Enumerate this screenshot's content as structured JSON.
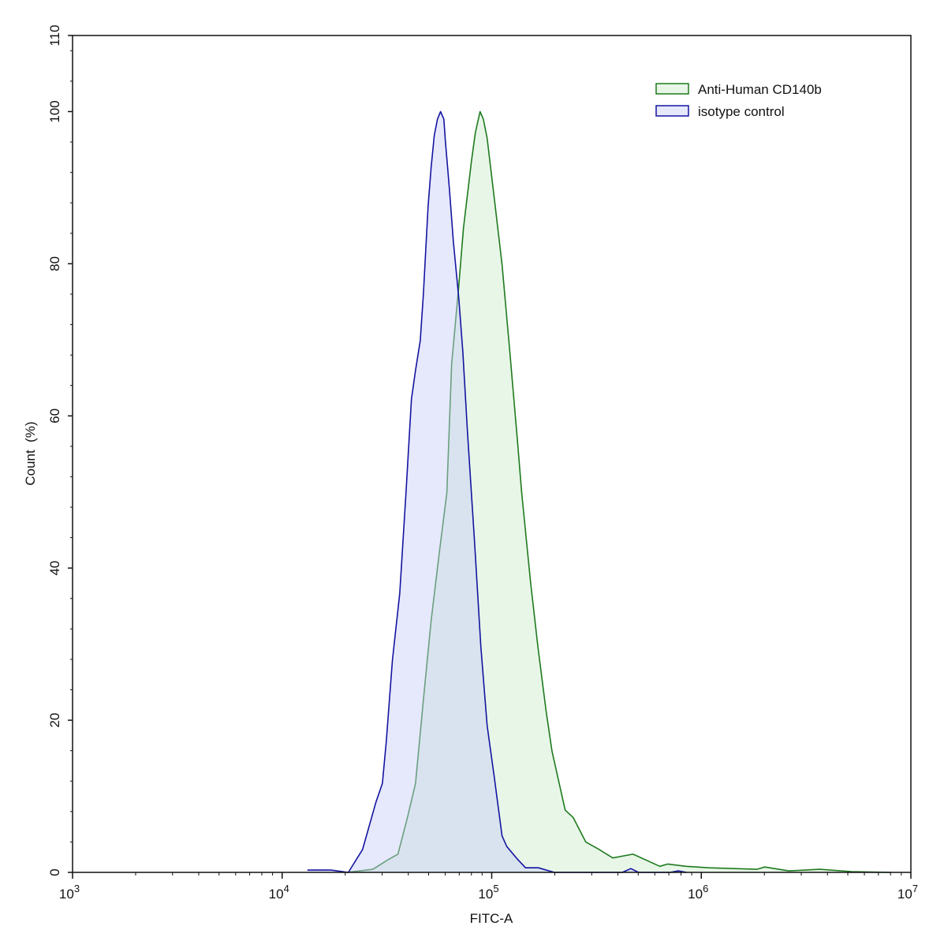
{
  "chart_data": {
    "type": "area",
    "xlabel": "FITC-A",
    "ylabel": "Count  (%)",
    "x_scale": "log",
    "xlim": [
      1000,
      10000000
    ],
    "ylim": [
      0,
      110
    ],
    "x_ticks": [
      {
        "base": "10",
        "exp": "3",
        "value": 1000
      },
      {
        "base": "10",
        "exp": "4",
        "value": 10000
      },
      {
        "base": "10",
        "exp": "5",
        "value": 100000
      },
      {
        "base": "10",
        "exp": "6",
        "value": 1000000
      },
      {
        "base": "10",
        "exp": "7",
        "value": 10000000
      }
    ],
    "y_ticks": [
      "0",
      "20",
      "40",
      "60",
      "80",
      "100",
      "110"
    ],
    "grid": false,
    "legend_position": "top-right",
    "series": [
      {
        "name": "Anti-Human CD140b",
        "stroke": "#1e7a1e",
        "fill": "rgba(190,230,190,0.35)",
        "x": [
          20400,
          27100,
          32200,
          35700,
          39600,
          43300,
          47200,
          51400,
          56100,
          61100,
          64400,
          69700,
          73300,
          80000,
          83500,
          88000,
          91200,
          95100,
          104000,
          112000,
          122000,
          133000,
          139000,
          153000,
          166000,
          182000,
          194000,
          224000,
          245000,
          281000,
          326000,
          378000,
          472000,
          634000,
          692000,
          845000,
          1090000,
          1840000,
          2010000,
          2610000,
          3680000,
          5210000,
          8040000
        ],
        "y": [
          0,
          0.4,
          1.7,
          2.4,
          7.2,
          11.7,
          22.7,
          33.1,
          41.8,
          49.9,
          66.8,
          77.2,
          84.7,
          93.4,
          97.2,
          100,
          99.0,
          96.5,
          87.5,
          79.9,
          68.4,
          56.4,
          49.9,
          38.3,
          29.7,
          21.1,
          15.9,
          8.2,
          7.2,
          4.0,
          3.0,
          1.9,
          2.4,
          0.8,
          1.1,
          0.8,
          0.6,
          0.4,
          0.7,
          0.2,
          0.4,
          0.1,
          0
        ]
      },
      {
        "name": "isotype control",
        "stroke": "#1414a0",
        "fill": "rgba(200,205,248,0.45)",
        "x": [
          13200,
          17100,
          20700,
          24200,
          28000,
          30100,
          31400,
          33600,
          36400,
          39000,
          41400,
          43300,
          45600,
          47200,
          49700,
          51400,
          53200,
          55100,
          57000,
          59100,
          60100,
          62800,
          65600,
          69700,
          72800,
          76600,
          80000,
          82800,
          88700,
          95100,
          103000,
          112000,
          118000,
          133000,
          145000,
          167000,
          199000,
          420000,
          461000,
          502000,
          710000,
          774000,
          850000
        ],
        "y": [
          0.3,
          0.3,
          0,
          3.0,
          9.2,
          11.7,
          17.2,
          27.9,
          36.7,
          49.9,
          62.2,
          66.0,
          69.9,
          76.1,
          87.5,
          92.7,
          96.9,
          99.0,
          100,
          99.0,
          96.2,
          89.9,
          83.0,
          75.4,
          68.4,
          58.0,
          49.9,
          43.5,
          29.7,
          19.3,
          12.4,
          4.8,
          3.4,
          1.7,
          0.6,
          0.6,
          0,
          0,
          0.5,
          0,
          0,
          0.2,
          0
        ]
      }
    ]
  }
}
